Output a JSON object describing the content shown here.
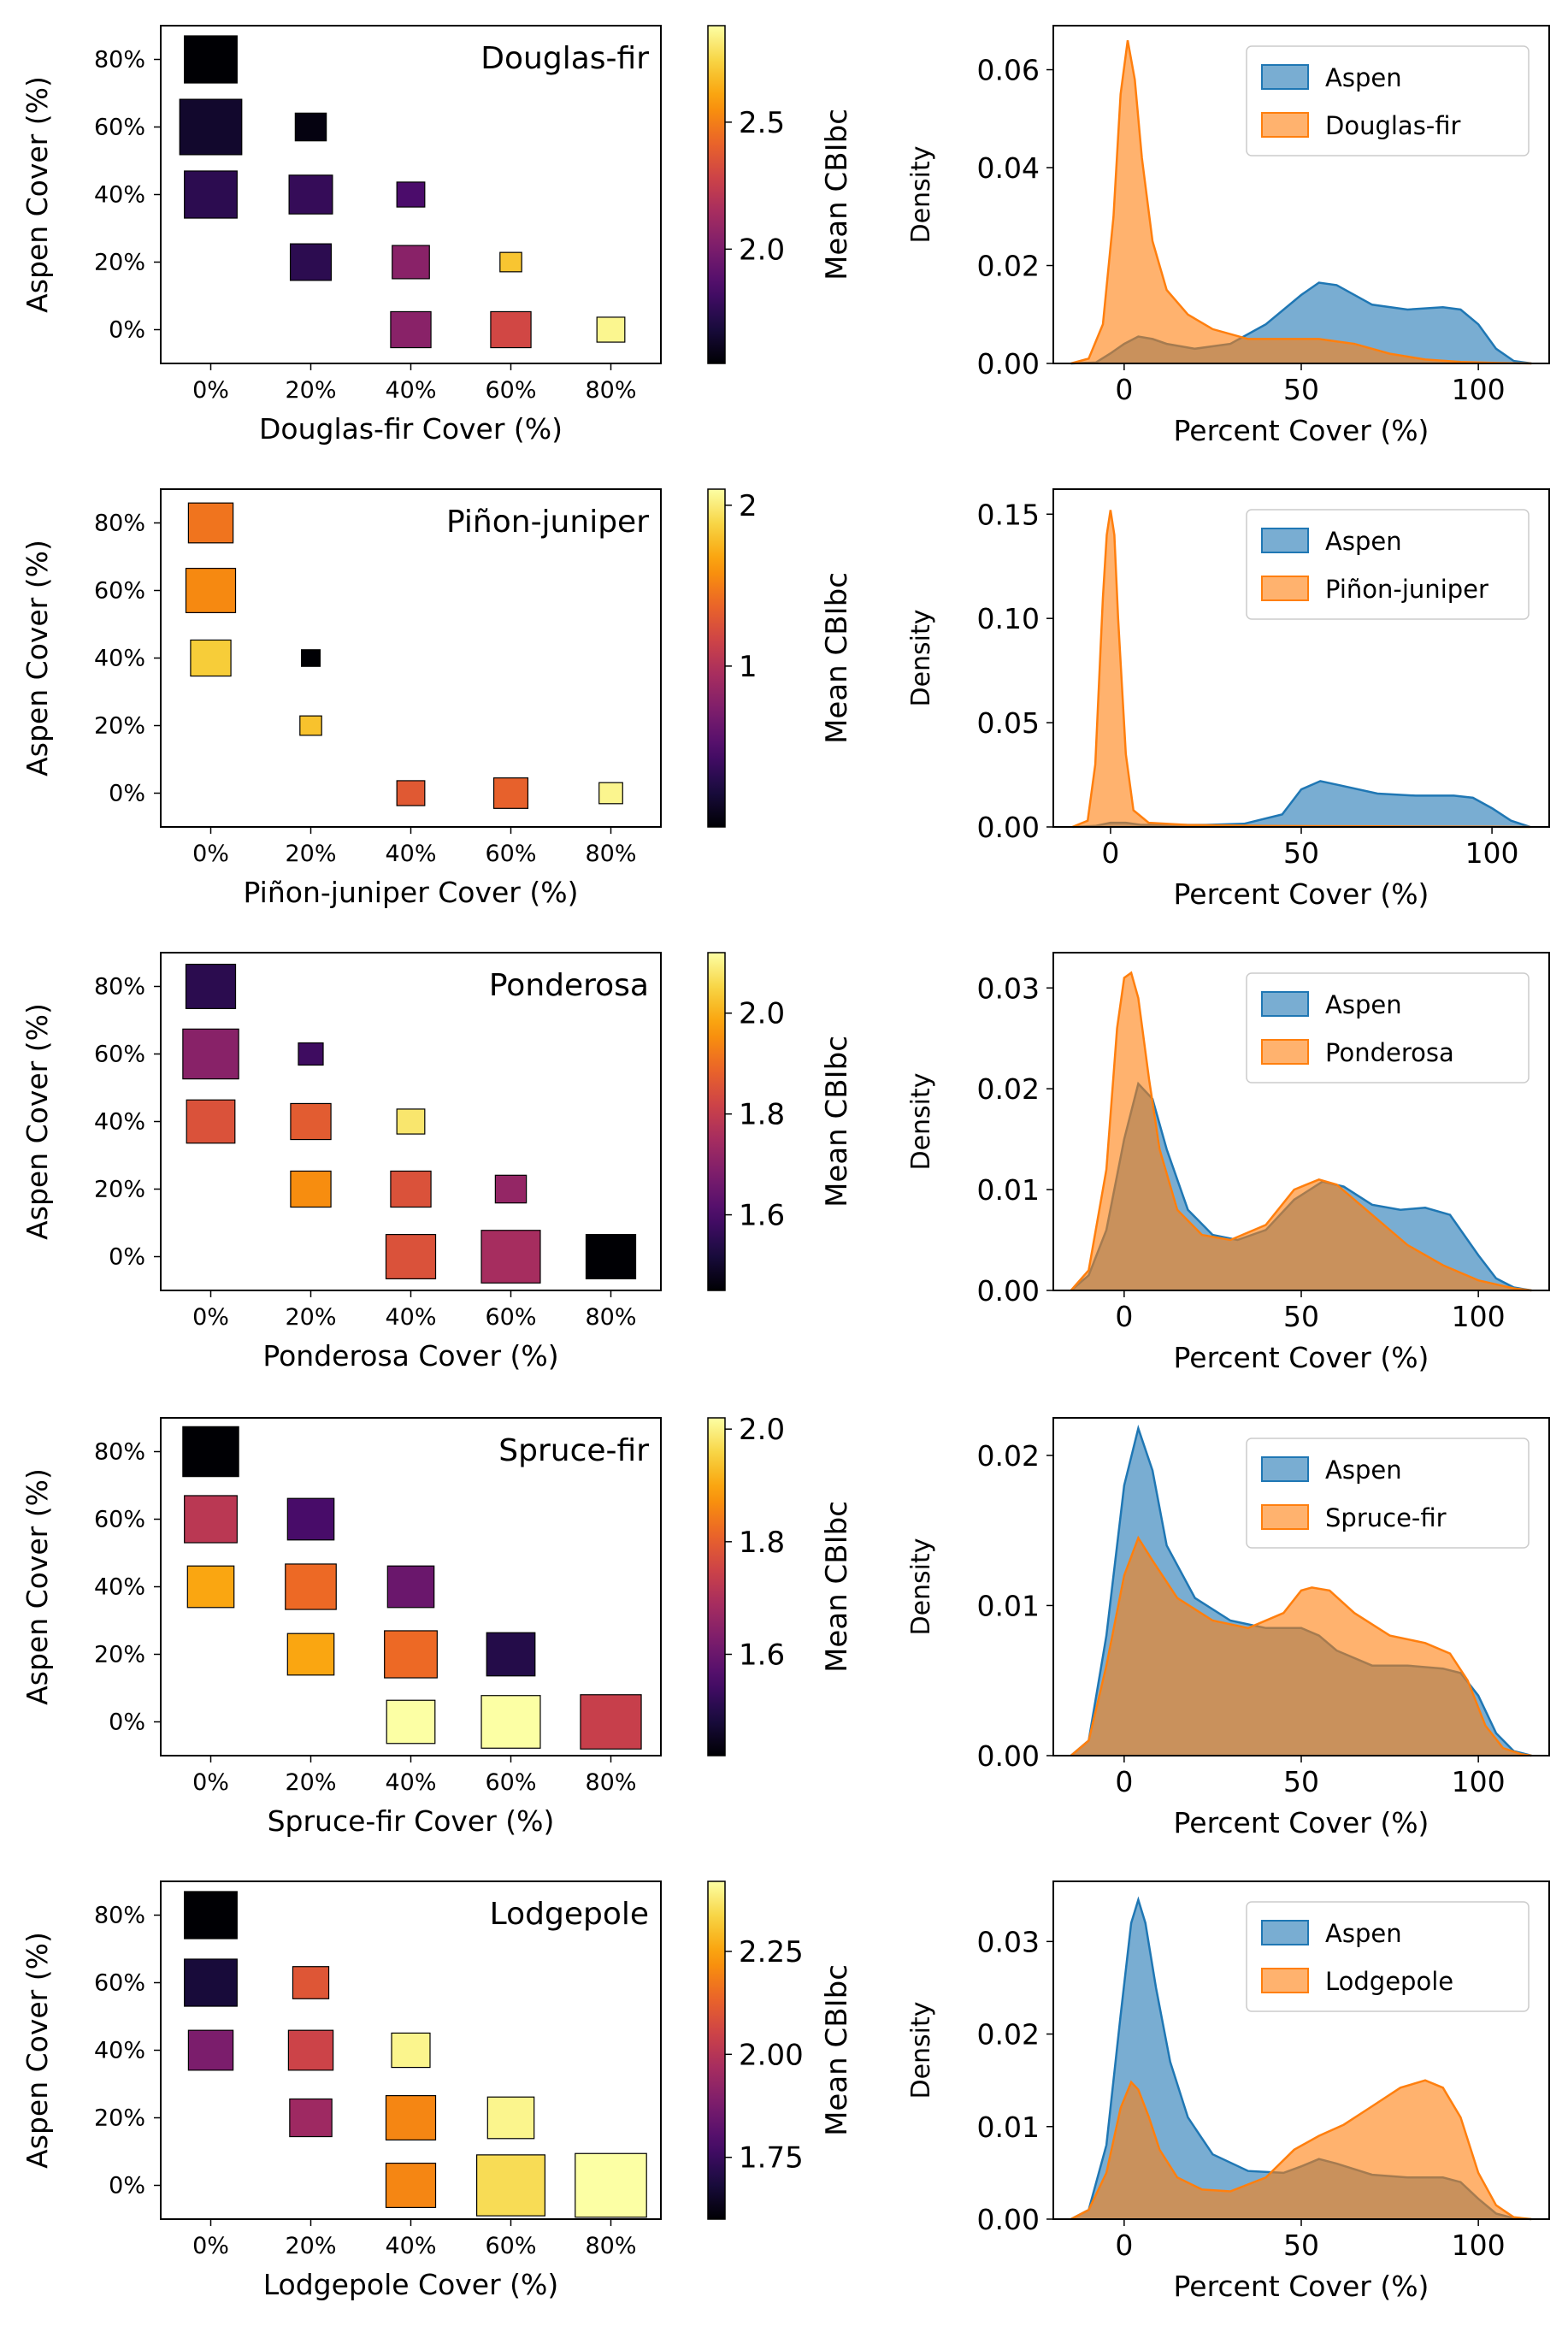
{
  "figure": {
    "colorbar_title": "Mean CBIbc",
    "density_ylabel": "Density",
    "density_xlabel": "Percent Cover (%)",
    "aspen_label": "Aspen"
  },
  "colors": {
    "aspen_fill": "#1f77b4",
    "other_fill": "#ff7f0e",
    "inferno": [
      "#000004",
      "#1b0c41",
      "#4a0c6b",
      "#781c6d",
      "#a52c60",
      "#cf4446",
      "#ed6925",
      "#fb9b06",
      "#f7d13d",
      "#fcffa4"
    ]
  },
  "chart_data": [
    {
      "type": "heatmap",
      "forest": "Douglas-fir",
      "xlabel": "Douglas-fir Cover (%)",
      "ylabel": "Aspen Cover (%)",
      "categories": [
        "0%",
        "20%",
        "40%",
        "60%",
        "80%"
      ],
      "colorbar": {
        "min": 1.55,
        "max": 2.88,
        "ticks": [
          2.0,
          2.5
        ],
        "tick_labels": [
          "2.0",
          "2.5"
        ]
      },
      "cells": [
        {
          "x": 0,
          "y": 80,
          "value": 1.55,
          "size": 0.85
        },
        {
          "x": 0,
          "y": 60,
          "value": 1.65,
          "size": 1.0
        },
        {
          "x": 0,
          "y": 40,
          "value": 1.75,
          "size": 0.85
        },
        {
          "x": 20,
          "y": 60,
          "value": 1.58,
          "size": 0.5
        },
        {
          "x": 20,
          "y": 40,
          "value": 1.78,
          "size": 0.7
        },
        {
          "x": 20,
          "y": 20,
          "value": 1.75,
          "size": 0.66
        },
        {
          "x": 40,
          "y": 40,
          "value": 1.85,
          "size": 0.45
        },
        {
          "x": 40,
          "y": 20,
          "value": 2.05,
          "size": 0.6
        },
        {
          "x": 40,
          "y": 0,
          "value": 2.05,
          "size": 0.65
        },
        {
          "x": 60,
          "y": 20,
          "value": 2.7,
          "size": 0.35
        },
        {
          "x": 60,
          "y": 0,
          "value": 2.3,
          "size": 0.65
        },
        {
          "x": 80,
          "y": 0,
          "value": 2.85,
          "size": 0.45
        }
      ]
    },
    {
      "type": "heatmap",
      "forest": "Piñon-juniper",
      "xlabel": "Piñon-juniper Cover (%)",
      "ylabel": "Aspen Cover (%)",
      "categories": [
        "0%",
        "20%",
        "40%",
        "60%",
        "80%"
      ],
      "colorbar": {
        "min": 0.0,
        "max": 2.1,
        "ticks": [
          1.0,
          2.0
        ],
        "tick_labels": [
          "1",
          "2"
        ]
      },
      "cells": [
        {
          "x": 0,
          "y": 80,
          "value": 1.45,
          "size": 0.72
        },
        {
          "x": 0,
          "y": 60,
          "value": 1.55,
          "size": 0.8
        },
        {
          "x": 0,
          "y": 40,
          "value": 1.85,
          "size": 0.65
        },
        {
          "x": 20,
          "y": 40,
          "value": 0.0,
          "size": 0.3
        },
        {
          "x": 20,
          "y": 20,
          "value": 1.8,
          "size": 0.35
        },
        {
          "x": 40,
          "y": 0,
          "value": 1.3,
          "size": 0.45
        },
        {
          "x": 60,
          "y": 0,
          "value": 1.35,
          "size": 0.55
        },
        {
          "x": 80,
          "y": 0,
          "value": 2.05,
          "size": 0.38
        }
      ]
    },
    {
      "type": "heatmap",
      "forest": "Ponderosa",
      "xlabel": "Ponderosa Cover (%)",
      "ylabel": "Aspen Cover (%)",
      "categories": [
        "0%",
        "20%",
        "40%",
        "60%",
        "80%"
      ],
      "colorbar": {
        "min": 1.45,
        "max": 2.12,
        "ticks": [
          1.6,
          1.8,
          2.0
        ],
        "tick_labels": [
          "1.6",
          "1.8",
          "2.0"
        ]
      },
      "cells": [
        {
          "x": 0,
          "y": 80,
          "value": 1.55,
          "size": 0.8
        },
        {
          "x": 0,
          "y": 60,
          "value": 1.7,
          "size": 0.9
        },
        {
          "x": 0,
          "y": 40,
          "value": 1.85,
          "size": 0.78
        },
        {
          "x": 20,
          "y": 60,
          "value": 1.58,
          "size": 0.4
        },
        {
          "x": 20,
          "y": 40,
          "value": 1.87,
          "size": 0.65
        },
        {
          "x": 20,
          "y": 20,
          "value": 1.95,
          "size": 0.65
        },
        {
          "x": 40,
          "y": 40,
          "value": 2.08,
          "size": 0.45
        },
        {
          "x": 40,
          "y": 20,
          "value": 1.85,
          "size": 0.65
        },
        {
          "x": 40,
          "y": 0,
          "value": 1.85,
          "size": 0.8
        },
        {
          "x": 60,
          "y": 20,
          "value": 1.72,
          "size": 0.5
        },
        {
          "x": 60,
          "y": 0,
          "value": 1.75,
          "size": 0.95
        },
        {
          "x": 80,
          "y": 0,
          "value": 1.45,
          "size": 0.8
        }
      ]
    },
    {
      "type": "heatmap",
      "forest": "Spruce-fir",
      "xlabel": "Spruce-fir Cover (%)",
      "ylabel": "Aspen Cover (%)",
      "categories": [
        "0%",
        "20%",
        "40%",
        "60%",
        "80%"
      ],
      "colorbar": {
        "min": 1.42,
        "max": 2.02,
        "ticks": [
          1.6,
          1.8,
          2.0
        ],
        "tick_labels": [
          "1.6",
          "1.8",
          "2.0"
        ]
      },
      "cells": [
        {
          "x": 0,
          "y": 80,
          "value": 1.42,
          "size": 0.9
        },
        {
          "x": 0,
          "y": 60,
          "value": 1.72,
          "size": 0.85
        },
        {
          "x": 0,
          "y": 40,
          "value": 1.9,
          "size": 0.75
        },
        {
          "x": 20,
          "y": 60,
          "value": 1.55,
          "size": 0.75
        },
        {
          "x": 20,
          "y": 40,
          "value": 1.82,
          "size": 0.82
        },
        {
          "x": 20,
          "y": 20,
          "value": 1.9,
          "size": 0.75
        },
        {
          "x": 40,
          "y": 40,
          "value": 1.6,
          "size": 0.75
        },
        {
          "x": 40,
          "y": 20,
          "value": 1.82,
          "size": 0.85
        },
        {
          "x": 40,
          "y": 0,
          "value": 2.02,
          "size": 0.78
        },
        {
          "x": 60,
          "y": 20,
          "value": 1.5,
          "size": 0.78
        },
        {
          "x": 60,
          "y": 0,
          "value": 2.02,
          "size": 0.95
        },
        {
          "x": 80,
          "y": 0,
          "value": 1.74,
          "size": 0.98
        }
      ]
    },
    {
      "type": "heatmap",
      "forest": "Lodgepole",
      "xlabel": "Lodgepole Cover (%)",
      "ylabel": "Aspen Cover (%)",
      "categories": [
        "0%",
        "20%",
        "40%",
        "60%",
        "80%"
      ],
      "colorbar": {
        "min": 1.6,
        "max": 2.42,
        "ticks": [
          1.75,
          2.0,
          2.25
        ],
        "tick_labels": [
          "1.75",
          "2.00",
          "2.25"
        ]
      },
      "cells": [
        {
          "x": 0,
          "y": 80,
          "value": 1.6,
          "size": 0.85
        },
        {
          "x": 0,
          "y": 60,
          "value": 1.68,
          "size": 0.85
        },
        {
          "x": 0,
          "y": 40,
          "value": 1.88,
          "size": 0.72
        },
        {
          "x": 20,
          "y": 60,
          "value": 2.1,
          "size": 0.58
        },
        {
          "x": 20,
          "y": 40,
          "value": 2.05,
          "size": 0.72
        },
        {
          "x": 20,
          "y": 20,
          "value": 1.95,
          "size": 0.68
        },
        {
          "x": 40,
          "y": 40,
          "value": 2.4,
          "size": 0.62
        },
        {
          "x": 40,
          "y": 20,
          "value": 2.2,
          "size": 0.8
        },
        {
          "x": 40,
          "y": 0,
          "value": 2.2,
          "size": 0.8
        },
        {
          "x": 60,
          "y": 20,
          "value": 2.4,
          "size": 0.75
        },
        {
          "x": 60,
          "y": 0,
          "value": 2.35,
          "size": 1.1
        },
        {
          "x": 80,
          "y": 0,
          "value": 2.42,
          "size": 1.15
        }
      ]
    },
    {
      "type": "area",
      "forest": "Douglas-fir",
      "xlabel": "Percent Cover (%)",
      "ylabel": "Density",
      "xlim": [
        -20,
        120
      ],
      "ylim": [
        0,
        0.069
      ],
      "xticks": [
        0,
        50,
        100
      ],
      "yticks": [
        0.0,
        0.02,
        0.04,
        0.06
      ],
      "ytick_labels": [
        "0.00",
        "0.02",
        "0.04",
        "0.06"
      ],
      "legend": "top-right",
      "series": [
        {
          "name": "Aspen",
          "x": [
            -15,
            -8,
            -4,
            0,
            4,
            8,
            12,
            20,
            30,
            40,
            50,
            55,
            60,
            70,
            80,
            90,
            95,
            100,
            105,
            110,
            115
          ],
          "y": [
            0,
            0.0002,
            0.002,
            0.004,
            0.0055,
            0.005,
            0.004,
            0.003,
            0.004,
            0.008,
            0.014,
            0.0165,
            0.016,
            0.012,
            0.011,
            0.0115,
            0.011,
            0.008,
            0.003,
            0.0005,
            0
          ]
        },
        {
          "name": "Douglas-fir",
          "x": [
            -15,
            -10,
            -6,
            -3,
            -1,
            1,
            3,
            5,
            8,
            12,
            18,
            25,
            35,
            45,
            55,
            65,
            75,
            85,
            95,
            105,
            115
          ],
          "y": [
            0,
            0.001,
            0.008,
            0.03,
            0.055,
            0.066,
            0.058,
            0.042,
            0.025,
            0.015,
            0.01,
            0.007,
            0.005,
            0.005,
            0.005,
            0.004,
            0.002,
            0.0008,
            0.0003,
            0.0001,
            0
          ]
        }
      ]
    },
    {
      "type": "area",
      "forest": "Piñon-juniper",
      "xlabel": "Percent Cover (%)",
      "ylabel": "Density",
      "xlim": [
        -15,
        115
      ],
      "ylim": [
        0,
        0.162
      ],
      "xticks": [
        0,
        50,
        100
      ],
      "yticks": [
        0.0,
        0.05,
        0.1,
        0.15
      ],
      "ytick_labels": [
        "0.00",
        "0.05",
        "0.10",
        "0.15"
      ],
      "legend": "top-right",
      "series": [
        {
          "name": "Aspen",
          "x": [
            -10,
            -4,
            0,
            4,
            8,
            15,
            25,
            35,
            45,
            50,
            55,
            60,
            70,
            80,
            90,
            95,
            100,
            105,
            110
          ],
          "y": [
            0,
            0.0005,
            0.002,
            0.002,
            0.001,
            0.001,
            0.001,
            0.0015,
            0.006,
            0.018,
            0.022,
            0.02,
            0.016,
            0.015,
            0.015,
            0.014,
            0.009,
            0.003,
            0
          ]
        },
        {
          "name": "Piñon-juniper",
          "x": [
            -10,
            -6,
            -4,
            -2,
            -1,
            0,
            1,
            2,
            4,
            6,
            10,
            20,
            40,
            70,
            100,
            110
          ],
          "y": [
            0,
            0.003,
            0.03,
            0.11,
            0.14,
            0.152,
            0.14,
            0.1,
            0.035,
            0.008,
            0.002,
            0.001,
            0.0005,
            0.0003,
            0.0001,
            0
          ]
        }
      ]
    },
    {
      "type": "area",
      "forest": "Ponderosa",
      "xlabel": "Percent Cover (%)",
      "ylabel": "Density",
      "xlim": [
        -20,
        120
      ],
      "ylim": [
        0,
        0.0335
      ],
      "xticks": [
        0,
        50,
        100
      ],
      "yticks": [
        0.0,
        0.01,
        0.02,
        0.03
      ],
      "ytick_labels": [
        "0.00",
        "0.01",
        "0.02",
        "0.03"
      ],
      "legend": "top-right",
      "series": [
        {
          "name": "Aspen",
          "x": [
            -15,
            -10,
            -5,
            0,
            4,
            8,
            12,
            18,
            25,
            32,
            40,
            48,
            56,
            62,
            70,
            78,
            85,
            92,
            100,
            105,
            110,
            115
          ],
          "y": [
            0,
            0.0015,
            0.006,
            0.015,
            0.0205,
            0.019,
            0.014,
            0.008,
            0.0055,
            0.005,
            0.006,
            0.009,
            0.0108,
            0.0103,
            0.0085,
            0.008,
            0.0082,
            0.0075,
            0.0035,
            0.0012,
            0.0003,
            0
          ]
        },
        {
          "name": "Ponderosa",
          "x": [
            -15,
            -10,
            -5,
            -2,
            0,
            2,
            4,
            7,
            10,
            15,
            22,
            30,
            40,
            48,
            55,
            60,
            70,
            80,
            90,
            100,
            110,
            115
          ],
          "y": [
            0,
            0.002,
            0.012,
            0.026,
            0.031,
            0.0315,
            0.029,
            0.021,
            0.014,
            0.008,
            0.0055,
            0.005,
            0.0065,
            0.01,
            0.011,
            0.0105,
            0.0075,
            0.0045,
            0.0025,
            0.001,
            0.0002,
            0
          ]
        }
      ]
    },
    {
      "type": "area",
      "forest": "Spruce-fir",
      "xlabel": "Percent Cover (%)",
      "ylabel": "Density",
      "xlim": [
        -20,
        120
      ],
      "ylim": [
        0,
        0.0225
      ],
      "xticks": [
        0,
        50,
        100
      ],
      "yticks": [
        0.0,
        0.01,
        0.02
      ],
      "ytick_labels": [
        "0.00",
        "0.01",
        "0.02"
      ],
      "legend": "top-right",
      "series": [
        {
          "name": "Aspen",
          "x": [
            -15,
            -10,
            -5,
            0,
            4,
            8,
            12,
            20,
            30,
            40,
            50,
            55,
            60,
            70,
            80,
            90,
            95,
            100,
            105,
            110,
            115
          ],
          "y": [
            0,
            0.001,
            0.008,
            0.018,
            0.0218,
            0.019,
            0.014,
            0.0105,
            0.009,
            0.0085,
            0.0085,
            0.008,
            0.007,
            0.006,
            0.006,
            0.0058,
            0.0055,
            0.004,
            0.0015,
            0.0003,
            0
          ]
        },
        {
          "name": "Spruce-fir",
          "x": [
            -15,
            -10,
            -5,
            0,
            4,
            8,
            15,
            25,
            35,
            45,
            50,
            53,
            58,
            65,
            75,
            85,
            92,
            97,
            102,
            107,
            112,
            115
          ],
          "y": [
            0,
            0.001,
            0.006,
            0.012,
            0.0145,
            0.013,
            0.0105,
            0.009,
            0.0085,
            0.0095,
            0.011,
            0.0112,
            0.011,
            0.0095,
            0.008,
            0.0075,
            0.0068,
            0.005,
            0.002,
            0.0005,
            0.0001,
            0
          ]
        }
      ]
    },
    {
      "type": "area",
      "forest": "Lodgepole",
      "xlabel": "Percent Cover (%)",
      "ylabel": "Density",
      "xlim": [
        -20,
        120
      ],
      "ylim": [
        0,
        0.0365
      ],
      "xticks": [
        0,
        50,
        100
      ],
      "yticks": [
        0.0,
        0.01,
        0.02,
        0.03
      ],
      "ytick_labels": [
        "0.00",
        "0.01",
        "0.02",
        "0.03"
      ],
      "legend": "top-right",
      "series": [
        {
          "name": "Aspen",
          "x": [
            -15,
            -10,
            -5,
            -1,
            2,
            4,
            6,
            9,
            13,
            18,
            25,
            35,
            45,
            50,
            55,
            60,
            70,
            80,
            90,
            95,
            100,
            105,
            110,
            115
          ],
          "y": [
            0,
            0.001,
            0.008,
            0.022,
            0.032,
            0.0345,
            0.032,
            0.025,
            0.017,
            0.011,
            0.007,
            0.0052,
            0.005,
            0.0057,
            0.0065,
            0.006,
            0.0048,
            0.0045,
            0.0045,
            0.004,
            0.0022,
            0.0006,
            0.0001,
            0
          ]
        },
        {
          "name": "Lodgepole",
          "x": [
            -15,
            -10,
            -5,
            -1,
            2,
            4,
            7,
            10,
            15,
            22,
            30,
            40,
            48,
            55,
            62,
            70,
            78,
            85,
            90,
            95,
            100,
            105,
            110,
            115
          ],
          "y": [
            0,
            0.001,
            0.005,
            0.012,
            0.0148,
            0.014,
            0.011,
            0.0075,
            0.0045,
            0.0032,
            0.003,
            0.0045,
            0.0075,
            0.009,
            0.0102,
            0.0122,
            0.0142,
            0.015,
            0.0142,
            0.011,
            0.005,
            0.0015,
            0.0002,
            0
          ]
        }
      ]
    }
  ]
}
